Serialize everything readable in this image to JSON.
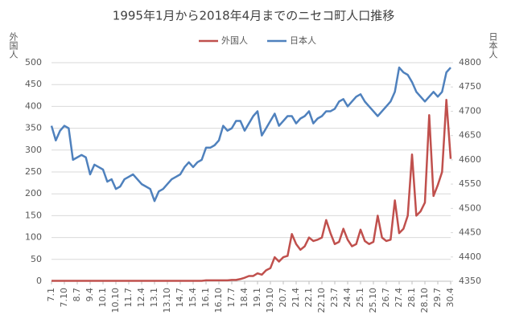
{
  "chart_data": {
    "type": "line",
    "title": "1995年1月から2018年4月までのニセコ町人口推移",
    "ylabel": "外国人",
    "y2label": "日本人",
    "categories": [
      "7.1",
      null,
      null,
      "7.10",
      null,
      null,
      "8.7",
      null,
      null,
      "9.4",
      null,
      null,
      "10.1",
      null,
      null,
      "10.10",
      null,
      null,
      "11.7",
      null,
      null,
      "12.4",
      null,
      null,
      "13.1",
      null,
      null,
      "13.10",
      null,
      null,
      "14.7",
      null,
      null,
      "15.4",
      null,
      null,
      "16.1",
      null,
      null,
      "16.10",
      null,
      null,
      "17.7",
      null,
      null,
      "18.4",
      null,
      null,
      "19.1",
      null,
      null,
      "19.10",
      null,
      null,
      "20.7",
      null,
      null,
      "21.4",
      null,
      null,
      "22.1",
      null,
      null,
      "22.10",
      null,
      null,
      "23.7",
      null,
      null,
      "24.4",
      null,
      null,
      "25.1",
      null,
      null,
      "25.10",
      null,
      null,
      "26.7",
      null,
      null,
      "27.4",
      null,
      null,
      "28.1",
      null,
      null,
      "28.10",
      null,
      null,
      "29.7",
      null,
      null,
      "30.4"
    ],
    "series": [
      {
        "name": "外国人",
        "color": "#c0504d",
        "values": [
          1,
          1,
          1,
          1,
          1,
          1,
          1,
          1,
          1,
          1,
          1,
          1,
          1,
          1,
          1,
          1,
          1,
          1,
          1,
          1,
          1,
          1,
          1,
          1,
          1,
          1,
          1,
          1,
          1,
          1,
          1,
          1,
          1,
          1,
          1,
          1,
          2,
          2,
          2,
          2,
          2,
          2,
          3,
          3,
          5,
          8,
          12,
          12,
          18,
          15,
          25,
          30,
          55,
          45,
          55,
          58,
          108,
          85,
          72,
          80,
          100,
          92,
          95,
          100,
          140,
          110,
          85,
          90,
          120,
          95,
          80,
          85,
          118,
          92,
          85,
          90,
          150,
          100,
          92,
          95,
          185,
          110,
          120,
          150,
          290,
          150,
          160,
          180,
          380,
          195,
          220,
          250,
          415,
          280
        ]
      },
      {
        "name": "日本人",
        "color": "#4f81bd",
        "axis": "y2",
        "values": [
          4670,
          4640,
          4660,
          4670,
          4665,
          4600,
          4605,
          4610,
          4605,
          4570,
          4590,
          4585,
          4580,
          4555,
          4560,
          4540,
          4545,
          4560,
          4565,
          4570,
          4560,
          4550,
          4545,
          4540,
          4515,
          4535,
          4540,
          4550,
          4560,
          4565,
          4570,
          4585,
          4595,
          4585,
          4595,
          4600,
          4625,
          4625,
          4630,
          4640,
          4670,
          4660,
          4665,
          4680,
          4680,
          4660,
          4675,
          4690,
          4700,
          4650,
          4665,
          4680,
          4695,
          4670,
          4680,
          4690,
          4690,
          4675,
          4685,
          4690,
          4700,
          4675,
          4685,
          4690,
          4700,
          4700,
          4705,
          4720,
          4725,
          4710,
          4720,
          4730,
          4735,
          4720,
          4710,
          4700,
          4690,
          4700,
          4710,
          4720,
          4740,
          4790,
          4780,
          4775,
          4760,
          4740,
          4730,
          4720,
          4730,
          4740,
          4730,
          4740,
          4780,
          4790
        ]
      }
    ],
    "ylim": [
      0,
      500
    ],
    "yticks": [
      0,
      50,
      100,
      150,
      200,
      250,
      300,
      350,
      400,
      450,
      500
    ],
    "y2lim": [
      4350,
      4800
    ],
    "y2ticks": [
      4350,
      4400,
      4450,
      4500,
      4550,
      4600,
      4650,
      4700,
      4750,
      4800
    ],
    "grid": true,
    "legend": "top"
  }
}
